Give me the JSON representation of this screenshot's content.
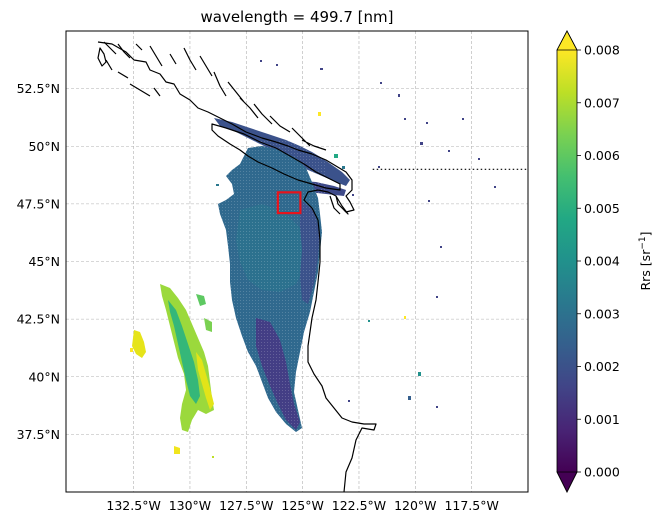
{
  "map": {
    "title": "wavelength = 499.7 [nm]",
    "projection": "PlateCarree",
    "extent_lon": [
      -135.5,
      -115.0
    ],
    "extent_lat": [
      35.0,
      55.0
    ],
    "lon_ticks": [
      -132.5,
      -130.0,
      -127.5,
      -125.0,
      -122.5,
      -120.0,
      -117.5
    ],
    "lon_tick_labels": [
      "132.5°W",
      "130°W",
      "127.5°W",
      "125°W",
      "122.5°W",
      "120°W",
      "117.5°W"
    ],
    "lat_ticks": [
      37.5,
      40.0,
      42.5,
      45.0,
      47.5,
      50.0,
      52.5
    ],
    "lat_tick_labels": [
      "37.5°N",
      "40°N",
      "42.5°N",
      "45°N",
      "47.5°N",
      "50°N",
      "52.5°N"
    ],
    "gridlines": true,
    "highlight_box": {
      "lon": [
        -126.1,
        -125.1
      ],
      "lat": [
        47.1,
        48.0
      ],
      "color": "#e8141c"
    },
    "border_line": {
      "lat": 49.0,
      "lon": [
        -123.0,
        -115.0
      ],
      "style": "dotted"
    }
  },
  "colorbar": {
    "label": "Rrs [sr",
    "label_sup": "−1",
    "label_end": "]",
    "vmin": 0.0,
    "vmax": 0.008,
    "ticks": [
      0.0,
      0.001,
      0.002,
      0.003,
      0.004,
      0.005,
      0.006,
      0.007,
      0.008
    ],
    "tick_labels": [
      "0.000",
      "0.001",
      "0.002",
      "0.003",
      "0.004",
      "0.005",
      "0.006",
      "0.007",
      "0.008"
    ],
    "colormap": "viridis",
    "extend": "both",
    "stops": [
      "#440154",
      "#482475",
      "#414487",
      "#355f8d",
      "#2a788e",
      "#21918c",
      "#22a884",
      "#44bf70",
      "#7ad151",
      "#bddf26",
      "#fde725"
    ]
  }
}
